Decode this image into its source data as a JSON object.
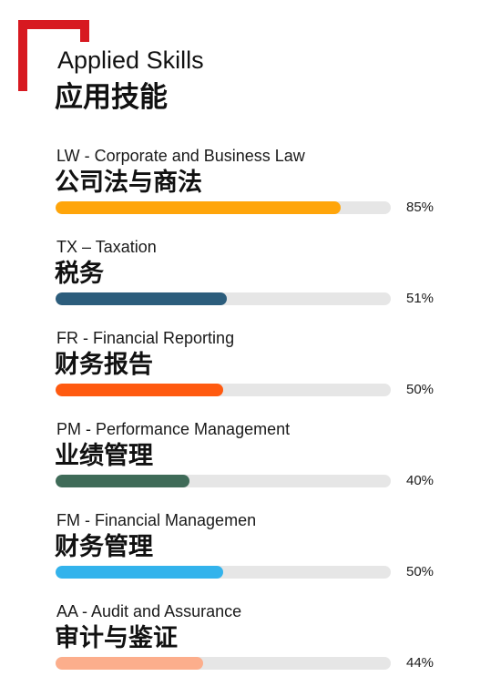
{
  "header": {
    "title_en": "Applied Skills",
    "title_zh": "应用技能",
    "brand_color": "#d71920"
  },
  "chart_data": {
    "type": "bar",
    "orientation": "horizontal",
    "xlim": [
      0,
      100
    ],
    "categories": [
      "LW - Corporate and Business Law",
      "TX – Taxation",
      "FR - Financial Reporting",
      "PM - Performance Management",
      "FM - Financial Managemen",
      "AA - Audit and Assurance"
    ],
    "categories_zh": [
      "公司法与商法",
      "税务",
      "财务报告",
      "业绩管理",
      "财务管理",
      "审计与鉴证"
    ],
    "values": [
      85,
      51,
      50,
      40,
      50,
      44
    ],
    "value_labels": [
      "85%",
      "51%",
      "50%",
      "40%",
      "50%",
      "44%"
    ],
    "colors": [
      "#ffa50a",
      "#2c5d7c",
      "#ff5a10",
      "#3f6b58",
      "#33b3ec",
      "#fcae8c"
    ],
    "track_color": "#e6e6e6"
  }
}
